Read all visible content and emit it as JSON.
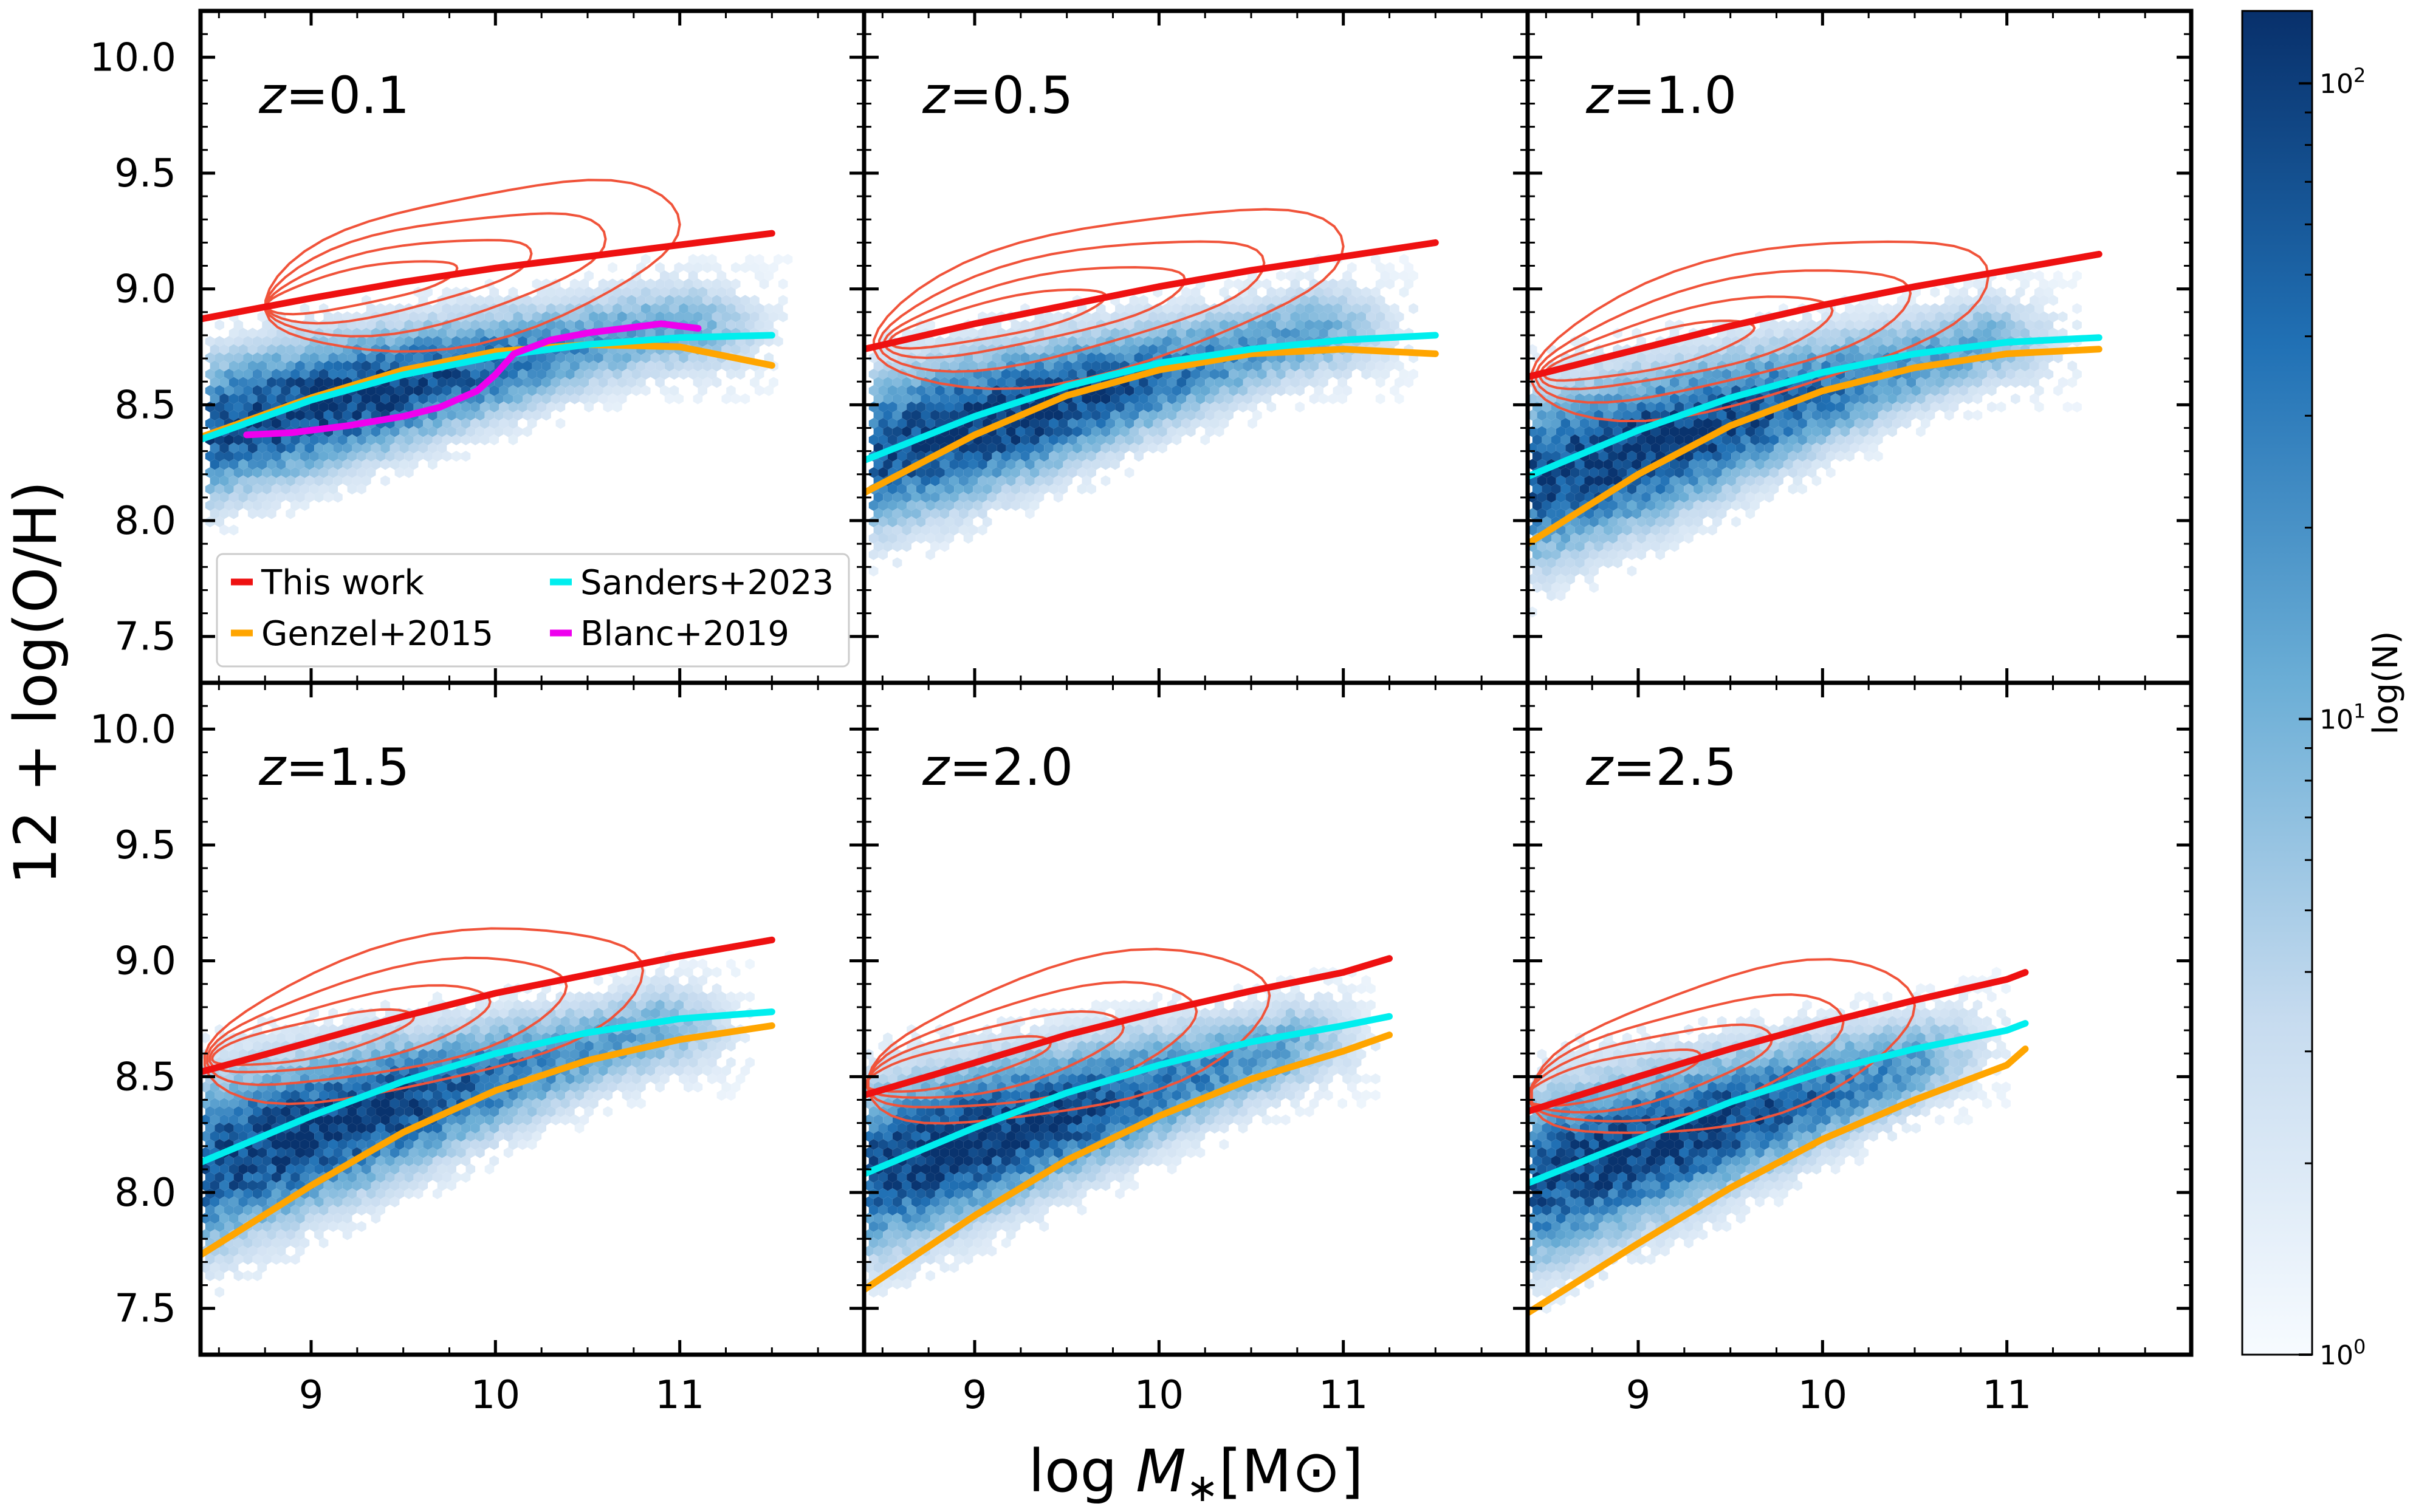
{
  "chart_data": {
    "type": "scatter",
    "description_kind": "hexbin density with contours and relations",
    "xlabel": "log M∗[M⊙]",
    "xlabel_parts": {
      "prefix": "log ",
      "symbol": "M",
      "sub": "∗",
      "unit": "[M⊙]"
    },
    "ylabel": "12 + log(O/H)",
    "xlim": [
      8.4,
      12.0
    ],
    "ylim": [
      7.3,
      10.2
    ],
    "x_ticks": [
      9,
      10,
      11
    ],
    "y_ticks": [
      7.5,
      8.0,
      8.5,
      9.0,
      9.5,
      10.0
    ],
    "x_tick_labels": [
      "9",
      "10",
      "11"
    ],
    "y_tick_labels": [
      "7.5",
      "8.0",
      "8.5",
      "9.0",
      "9.5",
      "10.0"
    ],
    "colorbar": {
      "label": "log(N)",
      "scale": "log",
      "range": [
        1,
        130
      ],
      "cmap": [
        "#f7fbff",
        "#c6dbef",
        "#6baed6",
        "#2171b5",
        "#08306b"
      ],
      "ticks": [
        {
          "value": 1,
          "base": "10",
          "exp": "0"
        },
        {
          "value": 10,
          "base": "10",
          "exp": "1"
        },
        {
          "value": 100,
          "base": "10",
          "exp": "2"
        }
      ]
    },
    "legend": {
      "location": "lower-left of first panel",
      "entries": [
        {
          "label": "This work",
          "color": "#ee1111"
        },
        {
          "label": "Sanders+2023",
          "color": "#00eeee"
        },
        {
          "label": "Genzel+2015",
          "color": "#ffa500"
        },
        {
          "label": "Blanc+2019",
          "color": "#ee00ee"
        }
      ]
    },
    "colors": {
      "this_work": "#ee1111",
      "sanders": "#00eeee",
      "genzel": "#ffa500",
      "blanc": "#ee00ee",
      "contour": "#f0533a"
    },
    "panels": [
      {
        "label_var": "z",
        "label_val": "=0.1",
        "this_work": {
          "x": [
            8.4,
            9.0,
            9.5,
            10.0,
            10.5,
            11.0,
            11.5
          ],
          "y": [
            8.87,
            8.96,
            9.03,
            9.09,
            9.14,
            9.19,
            9.24
          ]
        },
        "sanders": {
          "x": [
            8.4,
            9.0,
            9.5,
            10.0,
            10.5,
            11.0,
            11.5
          ],
          "y": [
            8.35,
            8.52,
            8.63,
            8.71,
            8.76,
            8.79,
            8.8
          ]
        },
        "genzel": {
          "x": [
            8.4,
            9.0,
            9.5,
            10.0,
            10.5,
            11.0,
            11.5
          ],
          "y": [
            8.36,
            8.53,
            8.65,
            8.73,
            8.76,
            8.75,
            8.67
          ]
        },
        "blanc": {
          "x": [
            8.65,
            8.9,
            9.2,
            9.5,
            9.7,
            9.9,
            10.0,
            10.1,
            10.3,
            10.5,
            10.7,
            10.9,
            11.1
          ],
          "y": [
            8.37,
            8.38,
            8.41,
            8.45,
            8.49,
            8.56,
            8.63,
            8.72,
            8.78,
            8.81,
            8.83,
            8.85,
            8.83
          ]
        },
        "data_center": {
          "x0": 8.6,
          "y0": 8.42,
          "x1": 10.6,
          "y1": 8.78,
          "spread_lo": 0.18,
          "spread_hi": 0.12,
          "xmin": 8.45,
          "xmax": 11.6
        },
        "contour_center": {
          "x0": 8.9,
          "y0": 8.95,
          "x1": 10.5,
          "y1": 9.2,
          "xmin": 8.75,
          "xmax": 11.0
        }
      },
      {
        "label_var": "z",
        "label_val": "=0.5",
        "this_work": {
          "x": [
            8.4,
            9.0,
            9.5,
            10.0,
            10.5,
            11.0,
            11.5
          ],
          "y": [
            8.74,
            8.85,
            8.93,
            9.01,
            9.08,
            9.14,
            9.2
          ]
        },
        "sanders": {
          "x": [
            8.4,
            9.0,
            9.5,
            10.0,
            10.5,
            11.0,
            11.5
          ],
          "y": [
            8.26,
            8.45,
            8.58,
            8.68,
            8.74,
            8.78,
            8.8
          ]
        },
        "genzel": {
          "x": [
            8.4,
            9.0,
            9.5,
            10.0,
            10.5,
            11.0,
            11.5
          ],
          "y": [
            8.12,
            8.37,
            8.54,
            8.65,
            8.72,
            8.74,
            8.72
          ]
        },
        "data_center": {
          "x0": 8.6,
          "y0": 8.32,
          "x1": 10.6,
          "y1": 8.76,
          "spread_lo": 0.2,
          "spread_hi": 0.12,
          "xmin": 8.45,
          "xmax": 11.4
        },
        "contour_center": {
          "x0": 8.7,
          "y0": 8.8,
          "x1": 10.5,
          "y1": 9.1,
          "xmin": 8.45,
          "xmax": 11.0
        }
      },
      {
        "label_var": "z",
        "label_val": "=1.0",
        "this_work": {
          "x": [
            8.4,
            9.0,
            9.5,
            10.0,
            10.5,
            11.0,
            11.5
          ],
          "y": [
            8.62,
            8.74,
            8.84,
            8.93,
            9.01,
            9.08,
            9.15
          ]
        },
        "sanders": {
          "x": [
            8.4,
            9.0,
            9.5,
            10.0,
            10.5,
            11.0,
            11.5
          ],
          "y": [
            8.19,
            8.39,
            8.53,
            8.64,
            8.72,
            8.77,
            8.79
          ]
        },
        "genzel": {
          "x": [
            8.4,
            9.0,
            9.5,
            10.0,
            10.5,
            11.0,
            11.5
          ],
          "y": [
            7.9,
            8.2,
            8.41,
            8.56,
            8.66,
            8.72,
            8.74
          ]
        },
        "data_center": {
          "x0": 8.55,
          "y0": 8.2,
          "x1": 10.6,
          "y1": 8.7,
          "spread_lo": 0.22,
          "spread_hi": 0.12,
          "xmin": 8.42,
          "xmax": 11.4
        },
        "contour_center": {
          "x0": 8.6,
          "y0": 8.65,
          "x1": 10.3,
          "y1": 8.95,
          "xmin": 8.42,
          "xmax": 10.9
        }
      },
      {
        "label_var": "z",
        "label_val": "=1.5",
        "this_work": {
          "x": [
            8.4,
            9.0,
            9.5,
            10.0,
            10.5,
            11.0,
            11.5
          ],
          "y": [
            8.52,
            8.65,
            8.76,
            8.86,
            8.94,
            9.02,
            9.09
          ]
        },
        "sanders": {
          "x": [
            8.4,
            9.0,
            9.5,
            10.0,
            10.5,
            11.0,
            11.5
          ],
          "y": [
            8.13,
            8.33,
            8.48,
            8.6,
            8.69,
            8.75,
            8.78
          ]
        },
        "genzel": {
          "x": [
            8.4,
            9.0,
            9.5,
            10.0,
            10.5,
            11.0,
            11.5
          ],
          "y": [
            7.73,
            8.03,
            8.26,
            8.44,
            8.57,
            8.66,
            8.72
          ]
        },
        "data_center": {
          "x0": 8.55,
          "y0": 8.15,
          "x1": 10.6,
          "y1": 8.64,
          "spread_lo": 0.22,
          "spread_hi": 0.12,
          "xmin": 8.42,
          "xmax": 11.4
        },
        "contour_center": {
          "x0": 8.6,
          "y0": 8.6,
          "x1": 10.2,
          "y1": 8.86,
          "xmin": 8.42,
          "xmax": 10.8
        }
      },
      {
        "label_var": "z",
        "label_val": "=2.0",
        "this_work": {
          "x": [
            8.4,
            9.0,
            9.5,
            10.0,
            10.5,
            11.0,
            11.25
          ],
          "y": [
            8.42,
            8.56,
            8.68,
            8.78,
            8.87,
            8.95,
            9.01
          ]
        },
        "sanders": {
          "x": [
            8.4,
            9.0,
            9.5,
            10.0,
            10.5,
            11.0,
            11.25
          ],
          "y": [
            8.08,
            8.28,
            8.43,
            8.55,
            8.65,
            8.72,
            8.76
          ]
        },
        "genzel": {
          "x": [
            8.4,
            9.0,
            9.5,
            10.0,
            10.5,
            11.0,
            11.25
          ],
          "y": [
            7.58,
            7.9,
            8.14,
            8.33,
            8.49,
            8.61,
            8.68
          ]
        },
        "data_center": {
          "x0": 8.55,
          "y0": 8.12,
          "x1": 10.6,
          "y1": 8.6,
          "spread_lo": 0.22,
          "spread_hi": 0.12,
          "xmin": 8.42,
          "xmax": 11.2
        },
        "contour_center": {
          "x0": 8.6,
          "y0": 8.5,
          "x1": 10.2,
          "y1": 8.78,
          "xmin": 8.42,
          "xmax": 10.6
        }
      },
      {
        "label_var": "z",
        "label_val": "=2.5",
        "this_work": {
          "x": [
            8.4,
            9.0,
            9.5,
            10.0,
            10.5,
            11.0,
            11.1
          ],
          "y": [
            8.35,
            8.5,
            8.62,
            8.73,
            8.83,
            8.92,
            8.95
          ]
        },
        "sanders": {
          "x": [
            8.4,
            9.0,
            9.5,
            10.0,
            10.5,
            11.0,
            11.1
          ],
          "y": [
            8.04,
            8.23,
            8.39,
            8.52,
            8.62,
            8.7,
            8.73
          ]
        },
        "genzel": {
          "x": [
            8.4,
            9.0,
            9.5,
            10.0,
            10.5,
            11.0,
            11.1
          ],
          "y": [
            7.48,
            7.78,
            8.02,
            8.23,
            8.4,
            8.55,
            8.62
          ]
        },
        "data_center": {
          "x0": 8.55,
          "y0": 8.08,
          "x1": 10.6,
          "y1": 8.58,
          "spread_lo": 0.22,
          "spread_hi": 0.12,
          "xmin": 8.42,
          "xmax": 11.0
        },
        "contour_center": {
          "x0": 8.6,
          "y0": 8.45,
          "x1": 10.2,
          "y1": 8.75,
          "xmin": 8.42,
          "xmax": 10.5
        }
      }
    ]
  }
}
